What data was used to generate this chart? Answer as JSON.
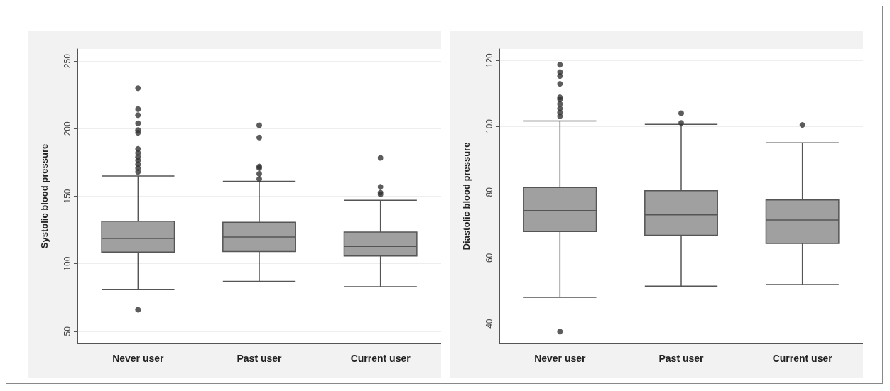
{
  "chart_data": [
    {
      "type": "box",
      "ylabel": "Systolic blood pressure",
      "categories": [
        "Never user",
        "Past user",
        "Current user"
      ],
      "color": "#a0a0a0",
      "ylim": [
        41,
        259
      ],
      "yticks": [
        50,
        100,
        150,
        200,
        250
      ],
      "grid": "y",
      "marker": "circle",
      "boxes": [
        {
          "low": 81,
          "q1": 108.6,
          "median": 118.7,
          "q3": 131.5,
          "high": 165,
          "outliers": [
            230,
            214.5,
            210,
            204,
            199,
            197,
            185,
            182,
            179,
            176.5,
            173.7,
            170.8,
            168,
            66
          ]
        },
        {
          "low": 87,
          "q1": 109,
          "median": 119.8,
          "q3": 130.7,
          "high": 161,
          "outliers": [
            202.5,
            193.5,
            172,
            170.8,
            166.6,
            162.8
          ]
        },
        {
          "low": 83,
          "q1": 105.7,
          "median": 112.8,
          "q3": 123.5,
          "high": 147,
          "outliers": [
            178.4,
            156.9,
            152.7,
            151.3
          ]
        }
      ]
    },
    {
      "type": "box",
      "ylabel": "Diastolic blood pressure",
      "categories": [
        "Never user",
        "Past user",
        "Current user"
      ],
      "color": "#a0a0a0",
      "ylim": [
        34,
        123.5
      ],
      "yticks": [
        40,
        60,
        80,
        100,
        120
      ],
      "grid": "y",
      "marker": "circle",
      "boxes": [
        {
          "low": 48,
          "q1": 68,
          "median": 74.4,
          "q3": 81.4,
          "high": 101.6,
          "outliers": [
            118.7,
            116.5,
            115.3,
            112.9,
            108.8,
            108.2,
            106.8,
            105.4,
            104.2,
            103.1,
            37.6
          ]
        },
        {
          "low": 51.4,
          "q1": 66.9,
          "median": 73.1,
          "q3": 80.4,
          "high": 100.6,
          "outliers": [
            104,
            101
          ]
        },
        {
          "low": 51.9,
          "q1": 64.4,
          "median": 71.5,
          "q3": 77.6,
          "high": 95,
          "outliers": [
            100.4
          ]
        }
      ]
    }
  ]
}
